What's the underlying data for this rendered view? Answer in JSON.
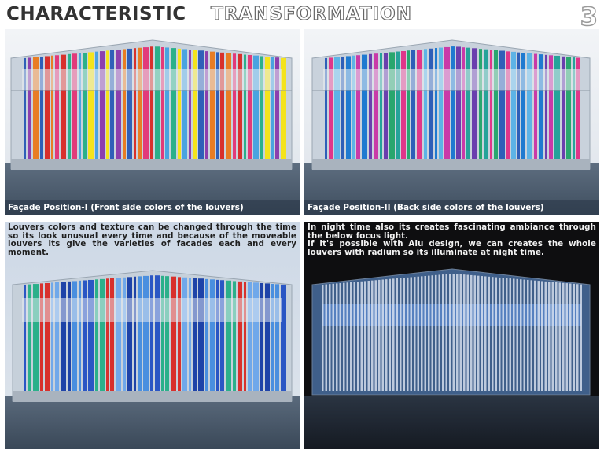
{
  "header": {
    "title_bold": "CHARACTERISTIC",
    "title_outline": "TRANSFORMATION",
    "page_number": "3"
  },
  "panels": {
    "front": {
      "caption": "Façade Position-I (Front side colors of the louvers)",
      "louver_colors": [
        "#2f5fb8",
        "#e23a7a",
        "#f4e31c",
        "#e87d24",
        "#2bb08a",
        "#8c3fae",
        "#d8302c",
        "#4aa3e0"
      ]
    },
    "back": {
      "caption": "Façade Position-II (Back side colors of the louvers)",
      "louver_colors": [
        "#2f5fb8",
        "#c93aa8",
        "#29a66e",
        "#5db3e6",
        "#6a3fae",
        "#e0368a",
        "#1f7ad0",
        "#25a39a"
      ]
    },
    "blue": {
      "description": "Louvers colors and texture can be changed through the time so its look unusual every time and because of the moveable louvers its give the varieties of facades each and every moment.",
      "louver_colors": [
        "#2a56c4",
        "#4a8fdf",
        "#1e43a8",
        "#6fa8ea",
        "#d8302c",
        "#2bb08a"
      ]
    },
    "night": {
      "description_line1": "In night time also its creates fascinating ambiance through the below focus light.",
      "description_line2": "If it's possible with Alu design, we can creates the whole louvers with radium so its illuminate at night time.",
      "louver_color": "#e8eef8"
    }
  },
  "colors": {
    "title": "#333333",
    "caption_bg": "#283446",
    "sky_day": "#dfe4ea",
    "night_bg": "#0e0e10"
  }
}
